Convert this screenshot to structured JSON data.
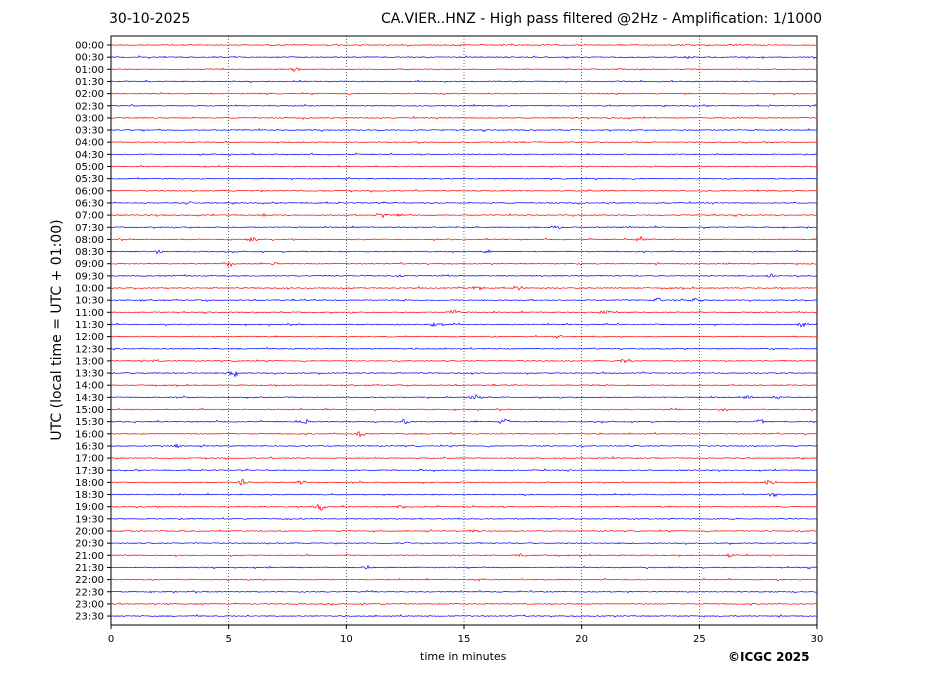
{
  "header": {
    "date": "30-10-2025",
    "title": "CA.VIER..HNZ - High pass filtered @2Hz - Amplification: 1/1000"
  },
  "footer": {
    "copyright": "©ICGC 2025"
  },
  "chart_data": {
    "type": "line",
    "title": "CA.VIER..HNZ - High pass filtered @2Hz - Amplification: 1/1000",
    "xlabel": "time in minutes",
    "ylabel": "UTC (local time = UTC + 01:00)",
    "xlim": [
      0,
      30
    ],
    "xticks": [
      0,
      5,
      10,
      15,
      20,
      25,
      30
    ],
    "grid": "vertical dotted at 5-minute intervals",
    "row_labels": [
      "00:00",
      "00:30",
      "01:00",
      "01:30",
      "02:00",
      "02:30",
      "03:00",
      "03:30",
      "04:00",
      "04:30",
      "05:00",
      "05:30",
      "06:00",
      "06:30",
      "07:00",
      "07:30",
      "08:00",
      "08:30",
      "09:00",
      "09:30",
      "10:00",
      "10:30",
      "11:00",
      "11:30",
      "12:00",
      "12:30",
      "13:00",
      "13:30",
      "14:00",
      "14:30",
      "15:00",
      "15:30",
      "16:00",
      "16:30",
      "17:00",
      "17:30",
      "18:00",
      "18:30",
      "19:00",
      "19:30",
      "20:00",
      "20:30",
      "21:00",
      "21:30",
      "22:00",
      "22:30",
      "23:00",
      "23:30"
    ],
    "trace_colors": [
      "#ff0000",
      "#0000ff"
    ],
    "events": [
      {
        "row": "00:30",
        "minute": 24.5,
        "amp": 0.4
      },
      {
        "row": "01:00",
        "minute": 7.8,
        "amp": 0.5
      },
      {
        "row": "06:30",
        "minute": 3.3,
        "amp": 0.3
      },
      {
        "row": "07:00",
        "minute": 11.5,
        "amp": 0.7
      },
      {
        "row": "07:00",
        "minute": 12.2,
        "amp": 0.5
      },
      {
        "row": "07:00",
        "minute": 6.5,
        "amp": 0.3
      },
      {
        "row": "07:30",
        "minute": 18.9,
        "amp": 0.5
      },
      {
        "row": "08:00",
        "minute": 6.0,
        "amp": 0.5
      },
      {
        "row": "08:00",
        "minute": 22.5,
        "amp": 0.6
      },
      {
        "row": "08:30",
        "minute": 2.0,
        "amp": 0.5
      },
      {
        "row": "08:30",
        "minute": 16.0,
        "amp": 0.4
      },
      {
        "row": "09:00",
        "minute": 5.0,
        "amp": 0.7
      },
      {
        "row": "09:00",
        "minute": 6.9,
        "amp": 0.3
      },
      {
        "row": "09:30",
        "minute": 12.3,
        "amp": 0.4
      },
      {
        "row": "09:30",
        "minute": 28.1,
        "amp": 0.4
      },
      {
        "row": "10:00",
        "minute": 15.6,
        "amp": 0.6
      },
      {
        "row": "10:00",
        "minute": 17.3,
        "amp": 0.4
      },
      {
        "row": "10:30",
        "minute": 23.3,
        "amp": 0.6
      },
      {
        "row": "10:30",
        "minute": 24.9,
        "amp": 0.5
      },
      {
        "row": "11:00",
        "minute": 14.6,
        "amp": 0.6
      },
      {
        "row": "11:00",
        "minute": 21.0,
        "amp": 0.5
      },
      {
        "row": "11:30",
        "minute": 13.8,
        "amp": 0.6
      },
      {
        "row": "11:30",
        "minute": 29.4,
        "amp": 0.6
      },
      {
        "row": "12:00",
        "minute": 19.0,
        "amp": 0.4
      },
      {
        "row": "13:00",
        "minute": 2.0,
        "amp": 0.4
      },
      {
        "row": "13:00",
        "minute": 21.8,
        "amp": 0.4
      },
      {
        "row": "13:30",
        "minute": 5.2,
        "amp": 0.8
      },
      {
        "row": "14:30",
        "minute": 15.5,
        "amp": 0.6
      },
      {
        "row": "14:30",
        "minute": 27.0,
        "amp": 0.5
      },
      {
        "row": "14:30",
        "minute": 28.3,
        "amp": 0.5
      },
      {
        "row": "15:00",
        "minute": 26.0,
        "amp": 0.5
      },
      {
        "row": "15:30",
        "minute": 8.2,
        "amp": 0.6
      },
      {
        "row": "15:30",
        "minute": 12.5,
        "amp": 0.6
      },
      {
        "row": "15:30",
        "minute": 16.7,
        "amp": 0.7
      },
      {
        "row": "15:30",
        "minute": 27.6,
        "amp": 0.5
      },
      {
        "row": "16:00",
        "minute": 10.6,
        "amp": 0.6
      },
      {
        "row": "16:30",
        "minute": 2.8,
        "amp": 0.3
      },
      {
        "row": "17:30",
        "minute": 13.2,
        "amp": 0.3
      },
      {
        "row": "18:00",
        "minute": 5.6,
        "amp": 0.7
      },
      {
        "row": "18:00",
        "minute": 8.1,
        "amp": 0.5
      },
      {
        "row": "18:00",
        "minute": 28.0,
        "amp": 0.7
      },
      {
        "row": "18:30",
        "minute": 28.2,
        "amp": 0.6
      },
      {
        "row": "19:00",
        "minute": 8.9,
        "amp": 0.8
      },
      {
        "row": "19:00",
        "minute": 12.3,
        "amp": 0.4
      },
      {
        "row": "20:00",
        "minute": 15.4,
        "amp": 0.5
      },
      {
        "row": "20:30",
        "minute": 12.5,
        "amp": 0.3
      },
      {
        "row": "21:00",
        "minute": 17.4,
        "amp": 0.4
      },
      {
        "row": "21:00",
        "minute": 26.3,
        "amp": 0.4
      },
      {
        "row": "21:30",
        "minute": 10.9,
        "amp": 0.5
      },
      {
        "row": "22:00",
        "minute": 15.6,
        "amp": 0.3
      }
    ]
  }
}
